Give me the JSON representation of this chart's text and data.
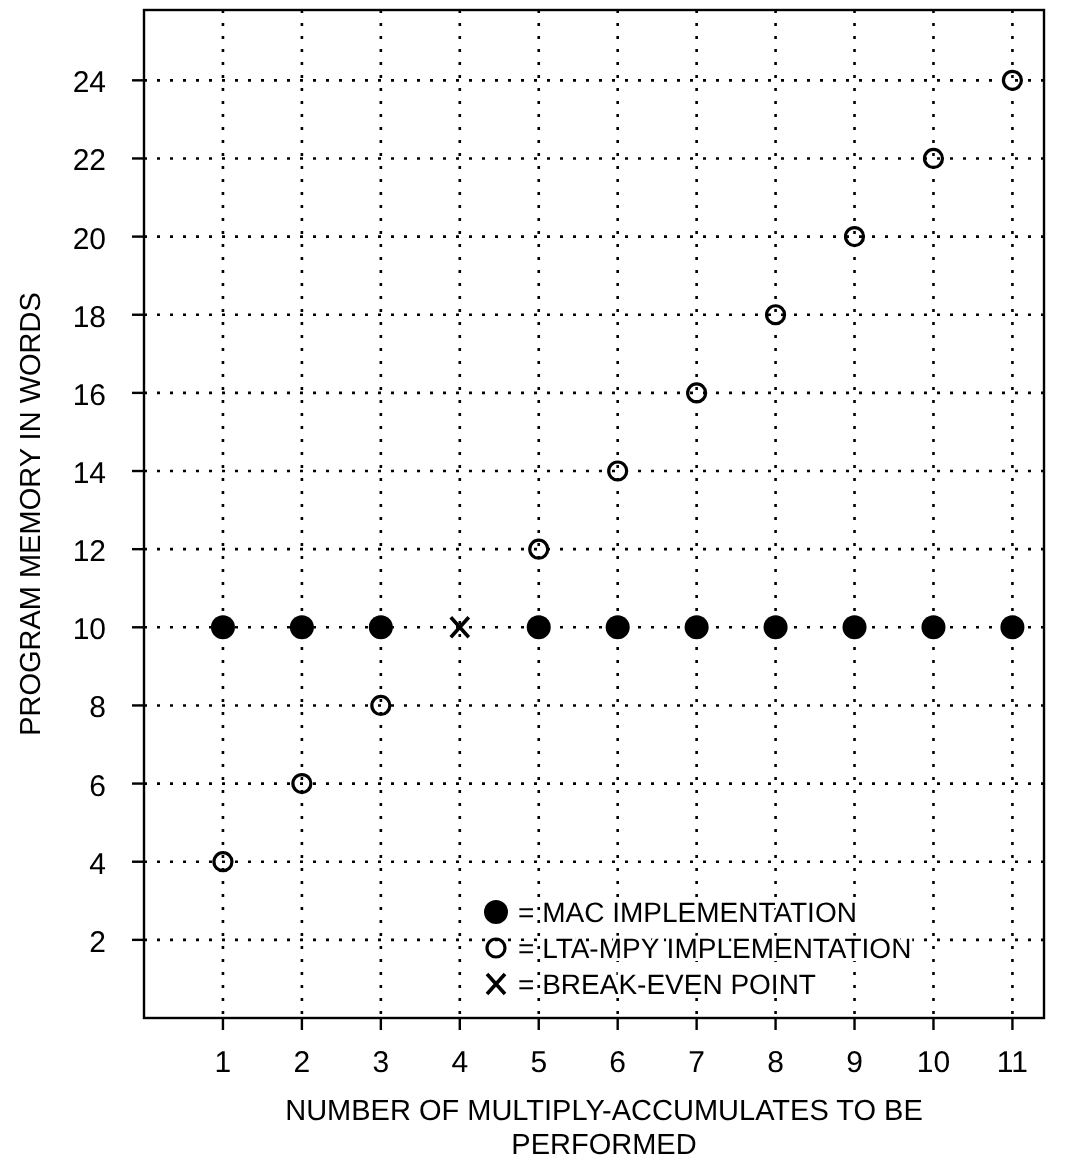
{
  "chart_data": {
    "type": "scatter",
    "xlabel": "NUMBER OF MULTIPLY-ACCUMULATES TO BE PERFORMED",
    "ylabel": "PROGRAM MEMORY IN WORDS",
    "xlim": [
      0,
      11.4
    ],
    "xticks": [
      1,
      2,
      3,
      4,
      5,
      6,
      7,
      8,
      9,
      10,
      11
    ],
    "ylim": [
      0,
      25.8
    ],
    "yticks": [
      2,
      4,
      6,
      8,
      10,
      12,
      14,
      16,
      18,
      20,
      22,
      24
    ],
    "grid": true,
    "legend": "bottom right",
    "series": [
      {
        "name": "= MAC IMPLEMENTATION",
        "color": "#000000",
        "marker": "circle",
        "x": [
          1,
          2,
          3,
          5,
          6,
          7,
          8,
          9,
          10,
          11
        ],
        "values": [
          10,
          10,
          10,
          10,
          10,
          10,
          10,
          10,
          10,
          10
        ]
      },
      {
        "name": "= LTA-MPY IMPLEMENTATION",
        "color": "#000000",
        "marker": "open-circle",
        "x": [
          1,
          2,
          3,
          5,
          6,
          7,
          8,
          9,
          10,
          11
        ],
        "values": [
          4,
          6,
          8,
          12,
          14,
          16,
          18,
          20,
          22,
          24
        ]
      },
      {
        "name": "= BREAK-EVEN POINT",
        "color": "#000000",
        "marker": "cross",
        "x": [
          4
        ],
        "values": [
          10
        ]
      }
    ]
  }
}
